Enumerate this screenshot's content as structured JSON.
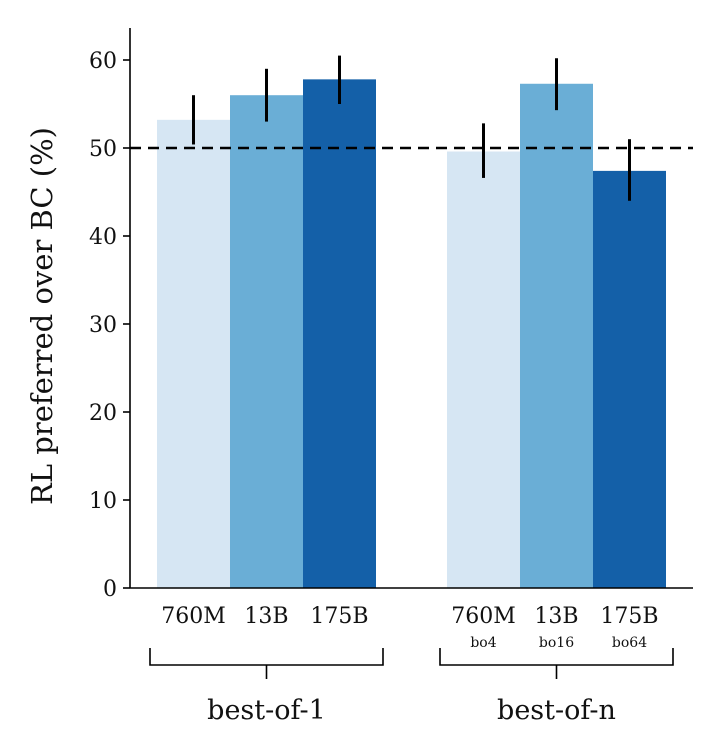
{
  "chart_data": {
    "type": "bar",
    "title": "",
    "ylabel": "RL preferred over BC (%)",
    "xlabel": "",
    "ylim": [
      0,
      64
    ],
    "yticks": [
      0,
      10,
      20,
      30,
      40,
      50,
      60
    ],
    "reference_line": 50,
    "groups": [
      {
        "name": "best-of-1",
        "bars": [
          {
            "label": "760M",
            "sub": "",
            "value": 53.2,
            "err_low": 50.4,
            "err_high": 56.0,
            "color": "#d6e6f3"
          },
          {
            "label": "13B",
            "sub": "",
            "value": 56.0,
            "err_low": 53.0,
            "err_high": 59.0,
            "color": "#6aaed6"
          },
          {
            "label": "175B",
            "sub": "",
            "value": 57.8,
            "err_low": 55.0,
            "err_high": 60.5,
            "color": "#1460a8"
          }
        ]
      },
      {
        "name": "best-of-n",
        "bars": [
          {
            "label": "760M",
            "sub": "bo4",
            "value": 49.6,
            "err_low": 46.6,
            "err_high": 52.8,
            "color": "#d6e6f3"
          },
          {
            "label": "13B",
            "sub": "bo16",
            "value": 57.3,
            "err_low": 54.3,
            "err_high": 60.2,
            "color": "#6aaed6"
          },
          {
            "label": "175B",
            "sub": "bo64",
            "value": 47.4,
            "err_low": 44.0,
            "err_high": 51.0,
            "color": "#1460a8"
          }
        ]
      }
    ]
  }
}
